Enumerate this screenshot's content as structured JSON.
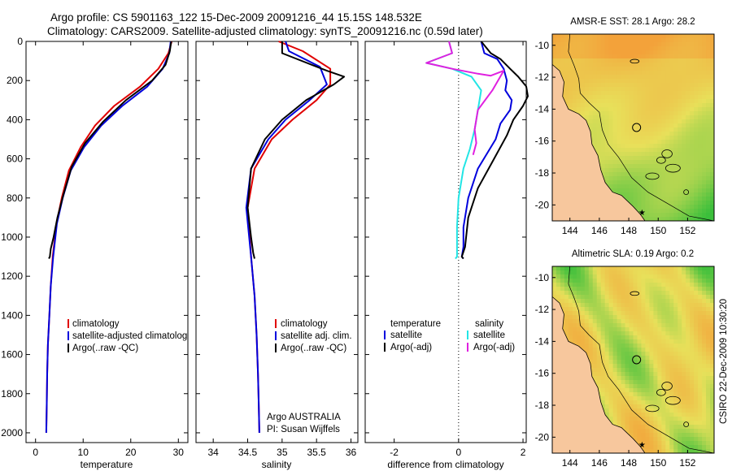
{
  "title": {
    "line1": "Argo profile: CS 5901163_122 15-Dec-2009 20091216_44 15.15S 148.532E",
    "line2": "Climatology: CARS2009. Satellite-adjusted climatology: synTS_20091216.nc (0.59d later)"
  },
  "credit": {
    "argo": "Argo AUSTRALIA",
    "pi": "PI: Susan Wijffels",
    "footer": "CSIRO 22-Dec-2009 10:30:20"
  },
  "colors": {
    "climatology": "#e00000",
    "satellite": "#0000dd",
    "argo": "#000000",
    "sal_satellite": "#22e5e5",
    "sal_argo": "#e020e0",
    "land": "#f7c79d",
    "sea_warm": "#f3a23a",
    "sea_mid": "#e8e05a",
    "sea_cool": "#3bbf3b"
  },
  "chart_data": [
    {
      "type": "line",
      "id": "temperature",
      "xlabel": "temperature",
      "ylabel": "",
      "xlim": [
        -2,
        32
      ],
      "ylim": [
        2050,
        0
      ],
      "xticks": [
        0,
        10,
        20,
        30
      ],
      "yticks": [
        0,
        200,
        400,
        600,
        800,
        1000,
        1200,
        1400,
        1600,
        1800,
        2000
      ],
      "legend": [
        "climatology",
        "satellite-adjusted climatolog",
        "Argo(..raw -QC)"
      ],
      "series": [
        {
          "name": "climatology",
          "color": "#e00000",
          "x": [
            28.6,
            27.9,
            25.8,
            22.0,
            16.5,
            12.5,
            9.5,
            7.0,
            5.5,
            4.4,
            3.6,
            3.2,
            2.9,
            2.6,
            2.45,
            2.35,
            2.25
          ],
          "y": [
            0,
            60,
            140,
            230,
            330,
            430,
            540,
            660,
            800,
            930,
            1100,
            1250,
            1400,
            1550,
            1700,
            1850,
            2000
          ]
        },
        {
          "name": "satellite-adjusted climatology",
          "color": "#0000dd",
          "x": [
            28.4,
            28.1,
            26.7,
            23.5,
            18.2,
            13.8,
            10.2,
            7.4,
            5.7,
            4.5,
            3.7,
            3.2,
            2.9,
            2.6,
            2.45,
            2.35,
            2.25
          ],
          "y": [
            0,
            60,
            140,
            230,
            330,
            430,
            540,
            660,
            800,
            930,
            1100,
            1250,
            1400,
            1550,
            1700,
            1850,
            2000
          ]
        },
        {
          "name": "Argo(..raw -QC)",
          "color": "#000000",
          "x": [
            28.5,
            28.2,
            27.3,
            24.5,
            19.0,
            14.2,
            10.4,
            7.6,
            5.9,
            4.6,
            3.8,
            3.2,
            3.0,
            2.8
          ],
          "y": [
            0,
            50,
            120,
            200,
            300,
            410,
            520,
            640,
            780,
            900,
            1000,
            1060,
            1100,
            1110
          ]
        }
      ]
    },
    {
      "type": "line",
      "id": "salinity",
      "xlabel": "salinity",
      "ylabel": "",
      "xlim": [
        33.75,
        36.1
      ],
      "ylim": [
        2050,
        0
      ],
      "xticks": [
        34,
        34.5,
        35,
        35.5,
        36
      ],
      "legend": [
        "climatology",
        "satellite adj. clim.",
        "Argo(..raw -QC)"
      ],
      "series": [
        {
          "name": "climatology",
          "color": "#e00000",
          "x": [
            34.95,
            35.3,
            35.7,
            35.7,
            35.5,
            35.15,
            34.85,
            34.6,
            34.5,
            34.55,
            34.6,
            34.63,
            34.65,
            34.66,
            34.67
          ],
          "y": [
            0,
            50,
            140,
            220,
            300,
            400,
            500,
            650,
            850,
            1100,
            1300,
            1500,
            1700,
            1850,
            2000
          ]
        },
        {
          "name": "satellite adj. clim.",
          "color": "#0000dd",
          "x": [
            35.05,
            35.1,
            35.55,
            35.65,
            35.4,
            35.05,
            34.8,
            34.55,
            34.48,
            34.55,
            34.6,
            34.63,
            34.65,
            34.66,
            34.67
          ],
          "y": [
            0,
            50,
            130,
            220,
            300,
            400,
            500,
            650,
            850,
            1100,
            1300,
            1500,
            1700,
            1850,
            2000
          ]
        },
        {
          "name": "Argo(..raw -QC)",
          "color": "#000000",
          "x": [
            35.0,
            35.0,
            35.65,
            35.9,
            35.75,
            35.35,
            35.0,
            34.75,
            34.55,
            34.5,
            34.55,
            34.58,
            34.6
          ],
          "y": [
            0,
            60,
            150,
            180,
            220,
            300,
            400,
            500,
            650,
            850,
            1000,
            1080,
            1110
          ]
        }
      ]
    },
    {
      "type": "line",
      "id": "difference",
      "xlabel": "difference from climatology",
      "ylabel": "",
      "xlim": [
        -2.9,
        2.1
      ],
      "ylim": [
        2050,
        0
      ],
      "xticks": [
        -2,
        0,
        2
      ],
      "legend_title_left": "temperature",
      "legend_title_right": "salinity",
      "legend": [
        "satellite",
        "Argo(-adj)",
        "satellite",
        "Argo(-adj)"
      ],
      "series": [
        {
          "name": "temperature satellite",
          "color": "#0000dd",
          "x": [
            0.7,
            0.8,
            1.2,
            1.4,
            1.5,
            1.45,
            1.65,
            1.6,
            1.3,
            1.15,
            0.6,
            0.3,
            0.15,
            0.15,
            0.1,
            0.15
          ],
          "y": [
            0,
            60,
            90,
            140,
            200,
            250,
            300,
            350,
            420,
            500,
            650,
            800,
            950,
            1050,
            1100,
            1110
          ]
        },
        {
          "name": "temperature Argo(-adj)",
          "color": "#000000",
          "x": [
            0.7,
            1.0,
            1.3,
            1.6,
            1.85,
            2.1,
            2.15,
            2.0,
            1.7,
            1.5,
            1.1,
            0.6,
            0.3,
            0.2,
            0.1,
            0.15
          ],
          "y": [
            0,
            60,
            90,
            140,
            180,
            230,
            280,
            330,
            400,
            480,
            600,
            750,
            900,
            1050,
            1100,
            1110
          ]
        },
        {
          "name": "salinity satellite",
          "color": "#22e5e5",
          "x": [
            -0.3,
            -0.2,
            -1.0,
            -0.2,
            0.4,
            0.7,
            0.6,
            0.5,
            0.35,
            0.15,
            0.0,
            -0.05,
            -0.05,
            -0.05,
            -0.1
          ],
          "y": [
            0,
            60,
            110,
            140,
            180,
            250,
            350,
            450,
            550,
            650,
            800,
            950,
            1050,
            1100,
            1110
          ]
        },
        {
          "name": "salinity Argo(-adj)",
          "color": "#e020e0",
          "x": [
            -0.3,
            -0.2,
            -1.0,
            -0.2,
            0.6,
            1.0,
            1.4,
            1.05,
            0.6,
            0.5,
            0.55,
            0.45
          ],
          "y": [
            0,
            60,
            110,
            140,
            165,
            175,
            150,
            250,
            350,
            450,
            520,
            580
          ]
        }
      ]
    }
  ],
  "maps": [
    {
      "id": "sst",
      "title": "AMSR-E SST: 28.1 Argo: 28.2",
      "xticks": [
        144,
        146,
        148,
        150,
        152
      ],
      "yticks": [
        -10,
        -12,
        -14,
        -16,
        -18,
        -20
      ],
      "xlim": [
        142.8,
        153.8
      ],
      "ylim": [
        -21,
        -9.3
      ],
      "argo_lon": 148.53,
      "argo_lat": -15.15
    },
    {
      "id": "sla",
      "title": "Altimetric SLA: 0.19 Argo: 0.2",
      "xticks": [
        144,
        146,
        148,
        150,
        152
      ],
      "yticks": [
        -10,
        -12,
        -14,
        -16,
        -18,
        -20
      ],
      "xlim": [
        142.8,
        153.8
      ],
      "ylim": [
        -21,
        -9.3
      ],
      "argo_lon": 148.53,
      "argo_lat": -15.15
    }
  ]
}
